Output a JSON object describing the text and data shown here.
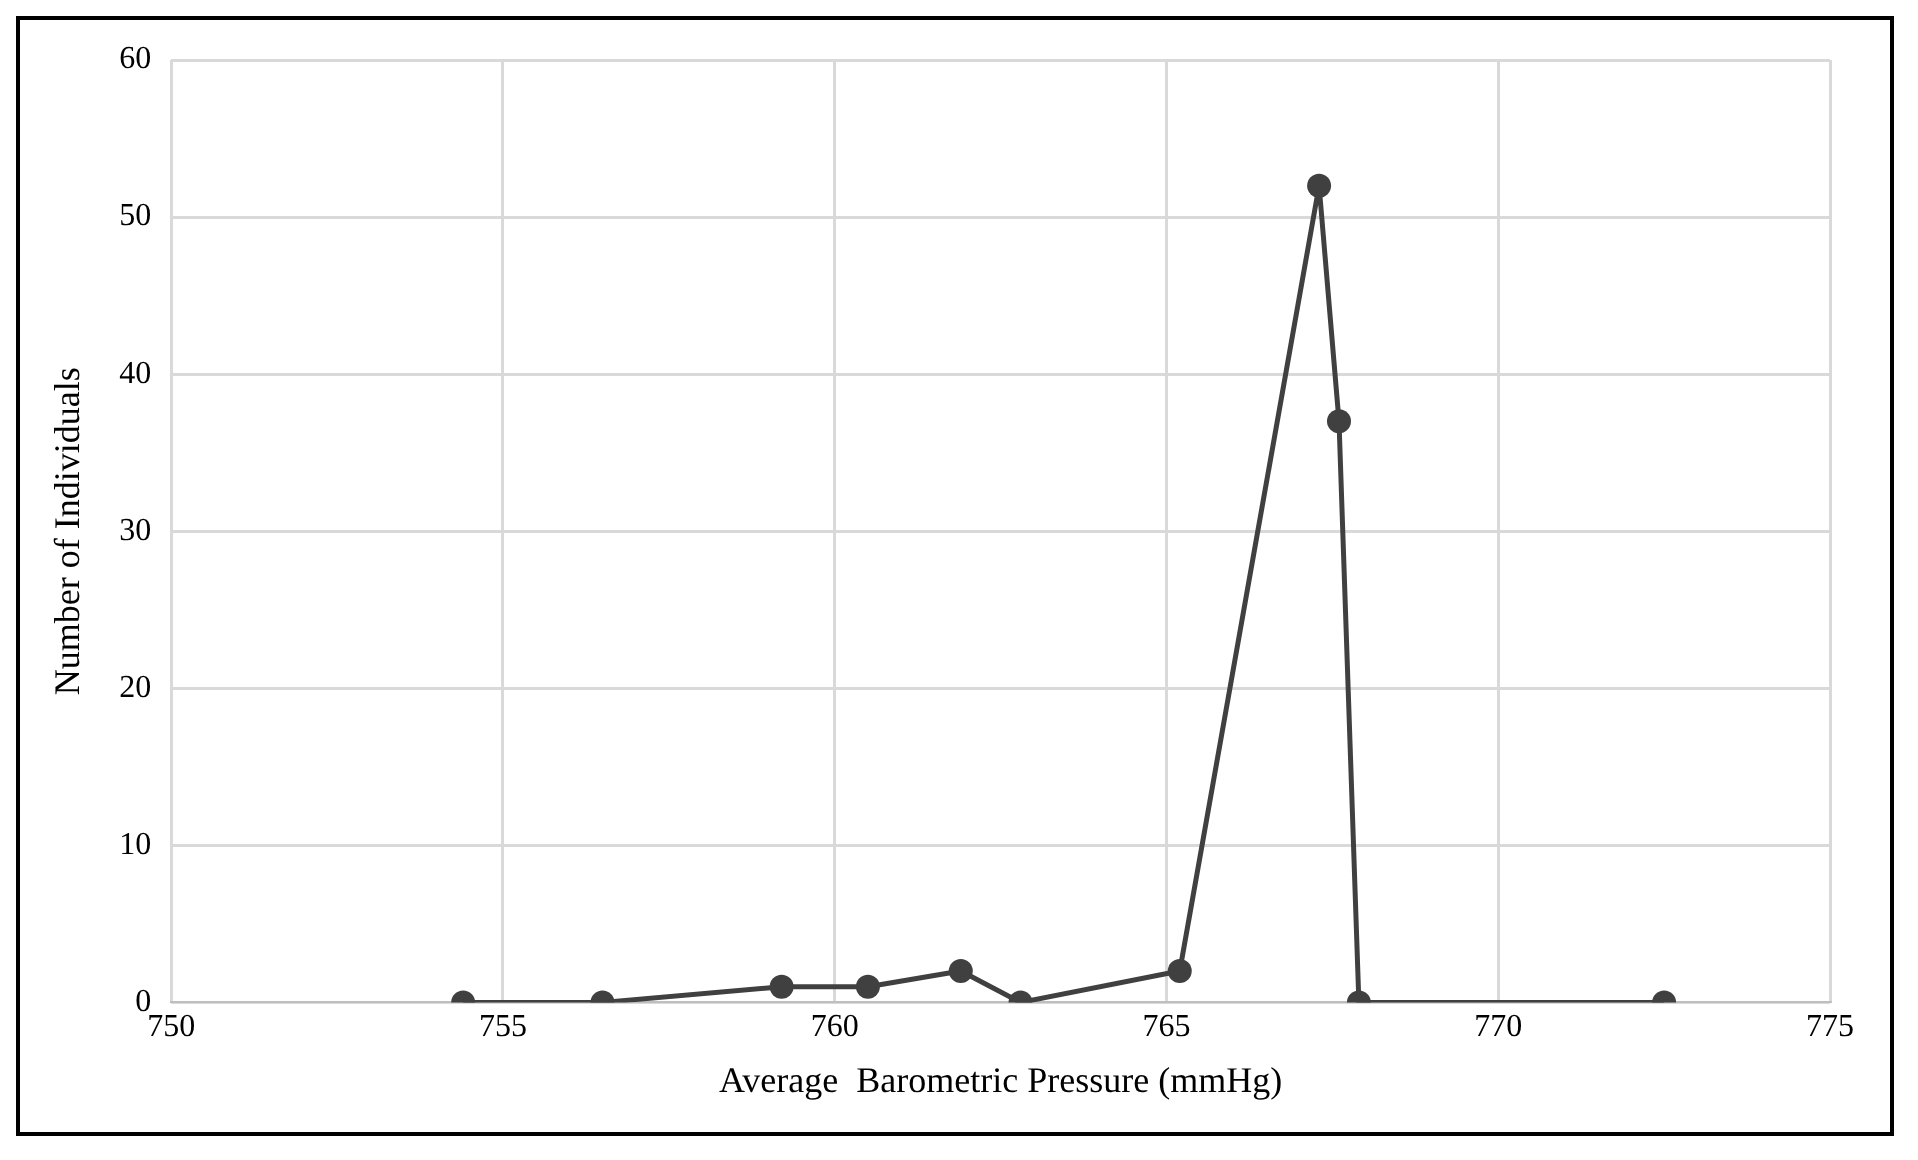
{
  "chart_data": {
    "type": "line",
    "xlabel": "Average  Barometric Pressure (mmHg)",
    "ylabel": "Number of Individuals",
    "x": [
      754.4,
      756.5,
      759.2,
      760.5,
      761.9,
      762.8,
      765.2,
      767.3,
      767.6,
      767.9,
      772.5
    ],
    "series": [
      {
        "color": "#404040",
        "values": [
          0,
          0,
          1,
          1,
          2,
          0,
          2,
          52,
          37,
          0,
          0
        ]
      }
    ],
    "xlim": [
      750,
      775
    ],
    "xticks": [
      750,
      755,
      760,
      765,
      770,
      775
    ],
    "ylim": [
      0,
      60
    ],
    "yticks": [
      0,
      10,
      20,
      30,
      40,
      50,
      60
    ],
    "grid": true,
    "legend": false,
    "marker": "circle",
    "line_style": "solid"
  }
}
